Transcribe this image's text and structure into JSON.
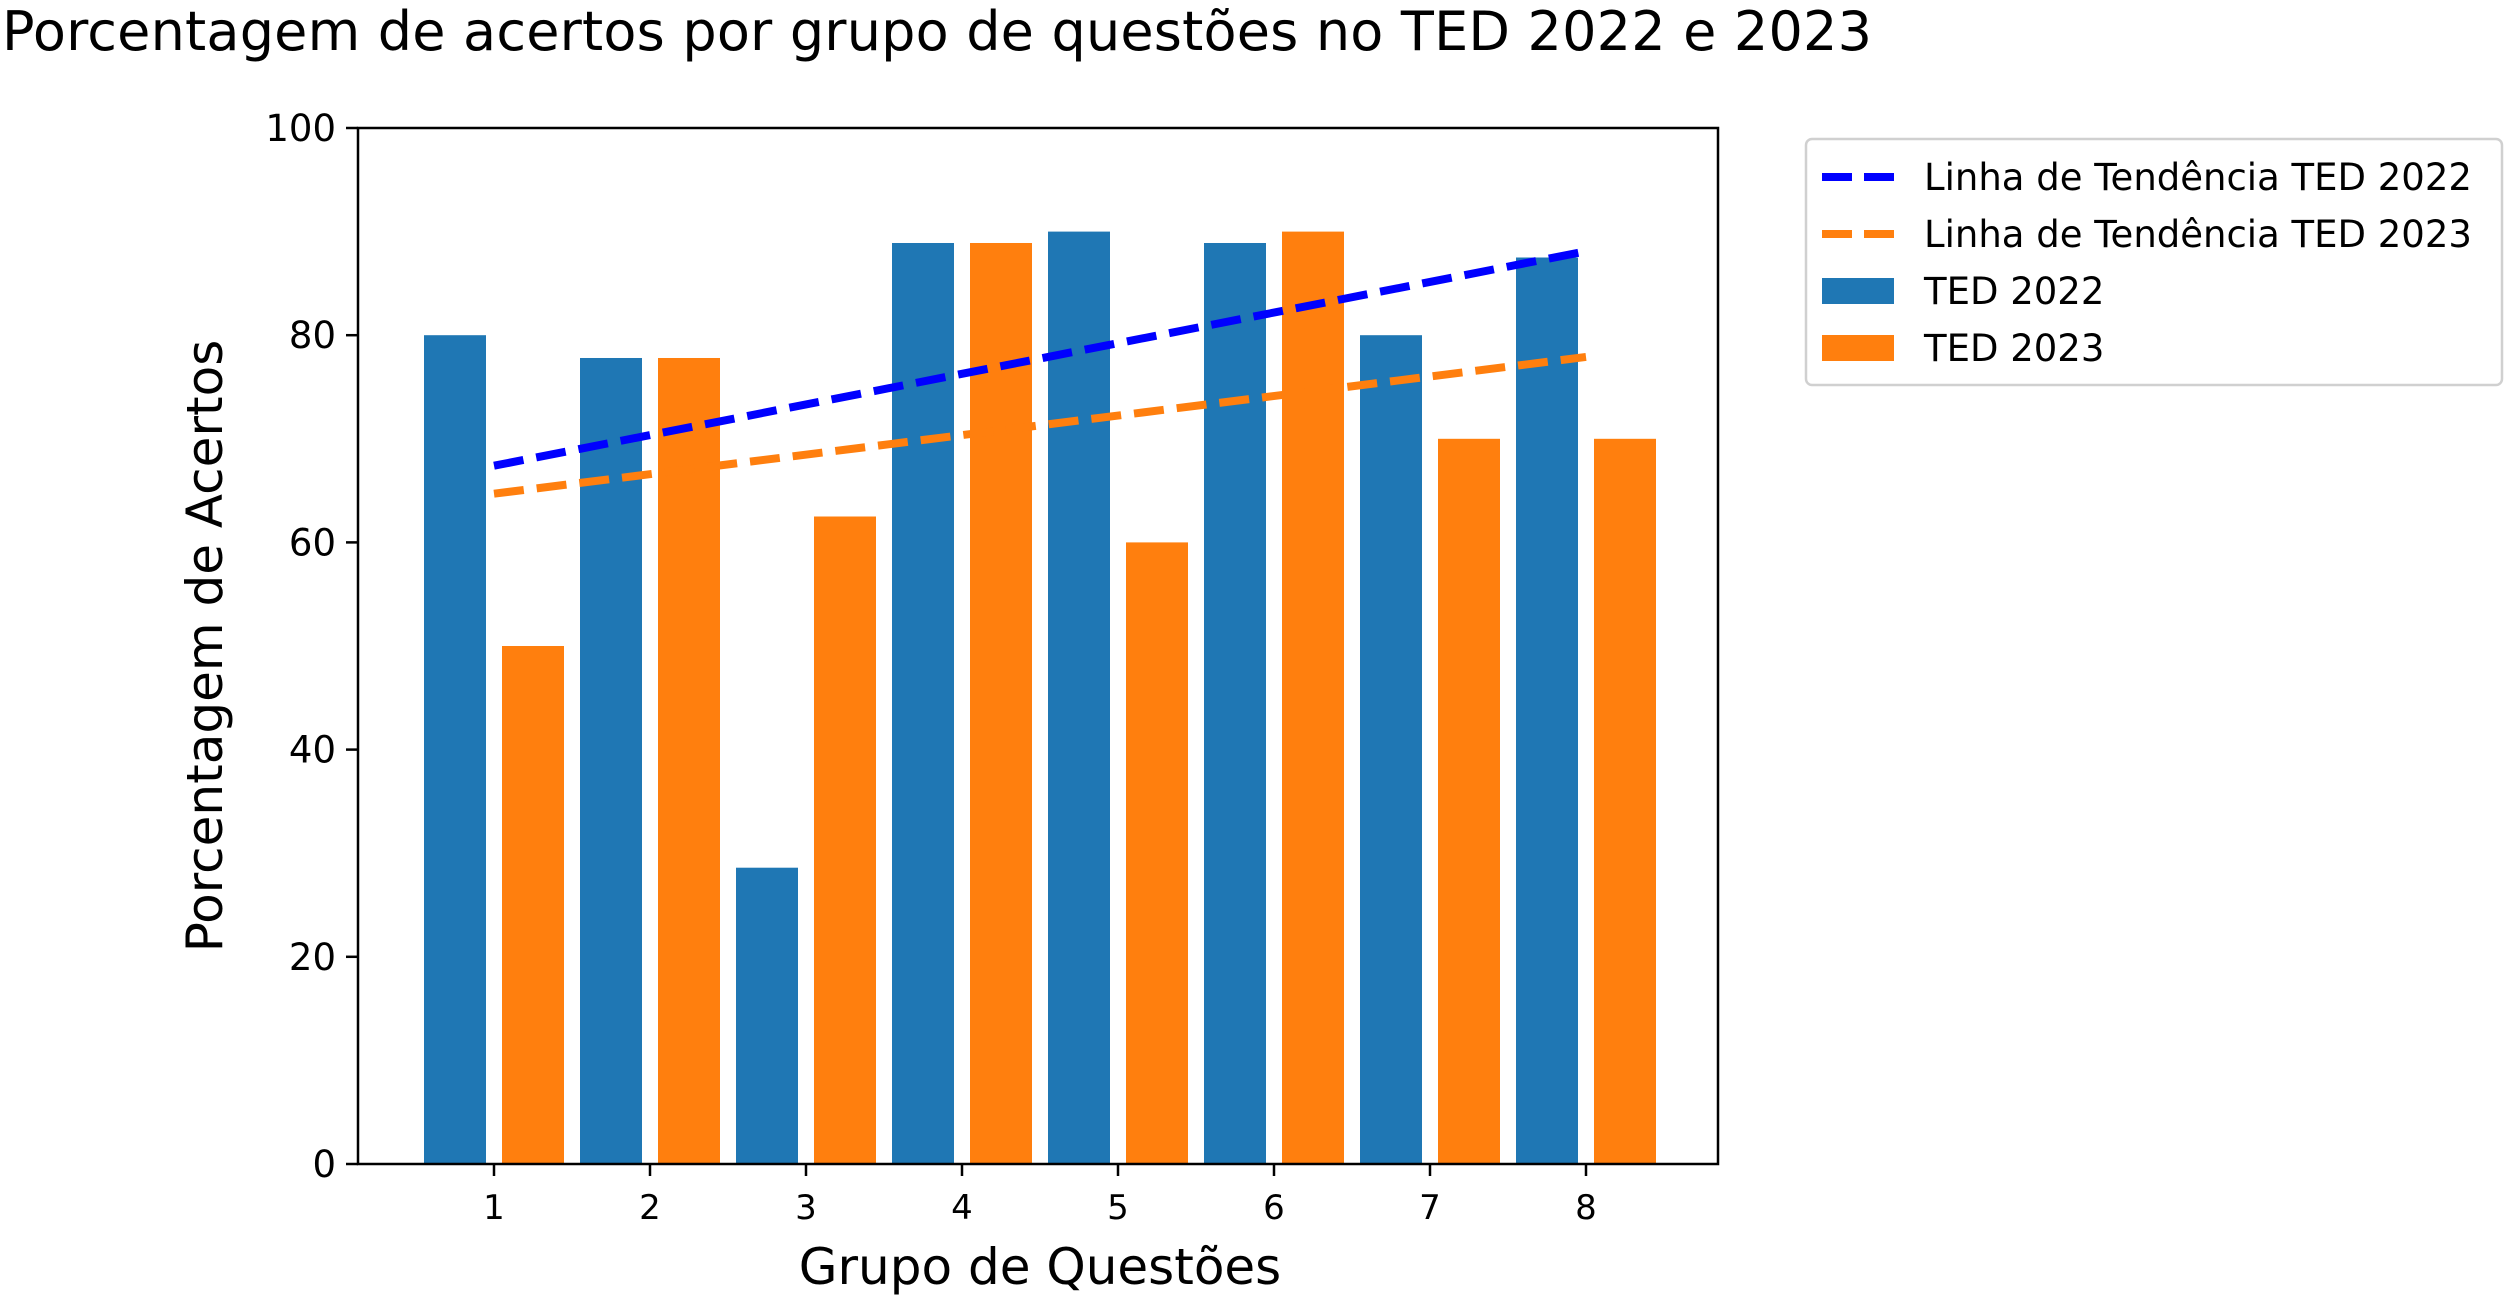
{
  "chart_data": {
    "type": "bar",
    "title": "Porcentagem de acertos por grupo de questões no TED 2022 e 2023",
    "xlabel": "Grupo de Questões",
    "ylabel": "Porcentagem de Acertos",
    "categories": [
      "1",
      "2",
      "3",
      "4",
      "5",
      "6",
      "7",
      "8"
    ],
    "ylim": [
      0,
      100
    ],
    "yticks": [
      0,
      20,
      40,
      60,
      80,
      100
    ],
    "grid": false,
    "legend_position": "outside-top-right",
    "series": [
      {
        "name": "TED 2022",
        "kind": "bar",
        "color": "#1f77b4",
        "values": [
          80,
          77.8,
          28.6,
          88.9,
          90,
          88.9,
          80,
          87.5
        ]
      },
      {
        "name": "TED 2023",
        "kind": "bar",
        "color": "#ff7f0e",
        "values": [
          50,
          77.8,
          62.5,
          88.9,
          60,
          90,
          70,
          70
        ]
      }
    ],
    "trendlines": [
      {
        "name": "Linha de Tendência TED 2022",
        "color": "#0000ff",
        "style": "dashed",
        "x": [
          "1",
          "8"
        ],
        "y": [
          67.4,
          88.1
        ]
      },
      {
        "name": "Linha de Tendência TED 2023",
        "color": "#ff7f0e",
        "style": "dashed",
        "x": [
          "1",
          "8"
        ],
        "y": [
          64.7,
          77.9
        ]
      }
    ],
    "legend": [
      {
        "label": "Linha de Tendência TED 2022",
        "marker": "dashed-line",
        "color": "#0000ff"
      },
      {
        "label": "Linha de Tendência TED 2023",
        "marker": "dashed-line",
        "color": "#ff7f0e"
      },
      {
        "label": "TED 2022",
        "marker": "patch",
        "color": "#1f77b4"
      },
      {
        "label": "TED 2023",
        "marker": "patch",
        "color": "#ff7f0e"
      }
    ]
  }
}
